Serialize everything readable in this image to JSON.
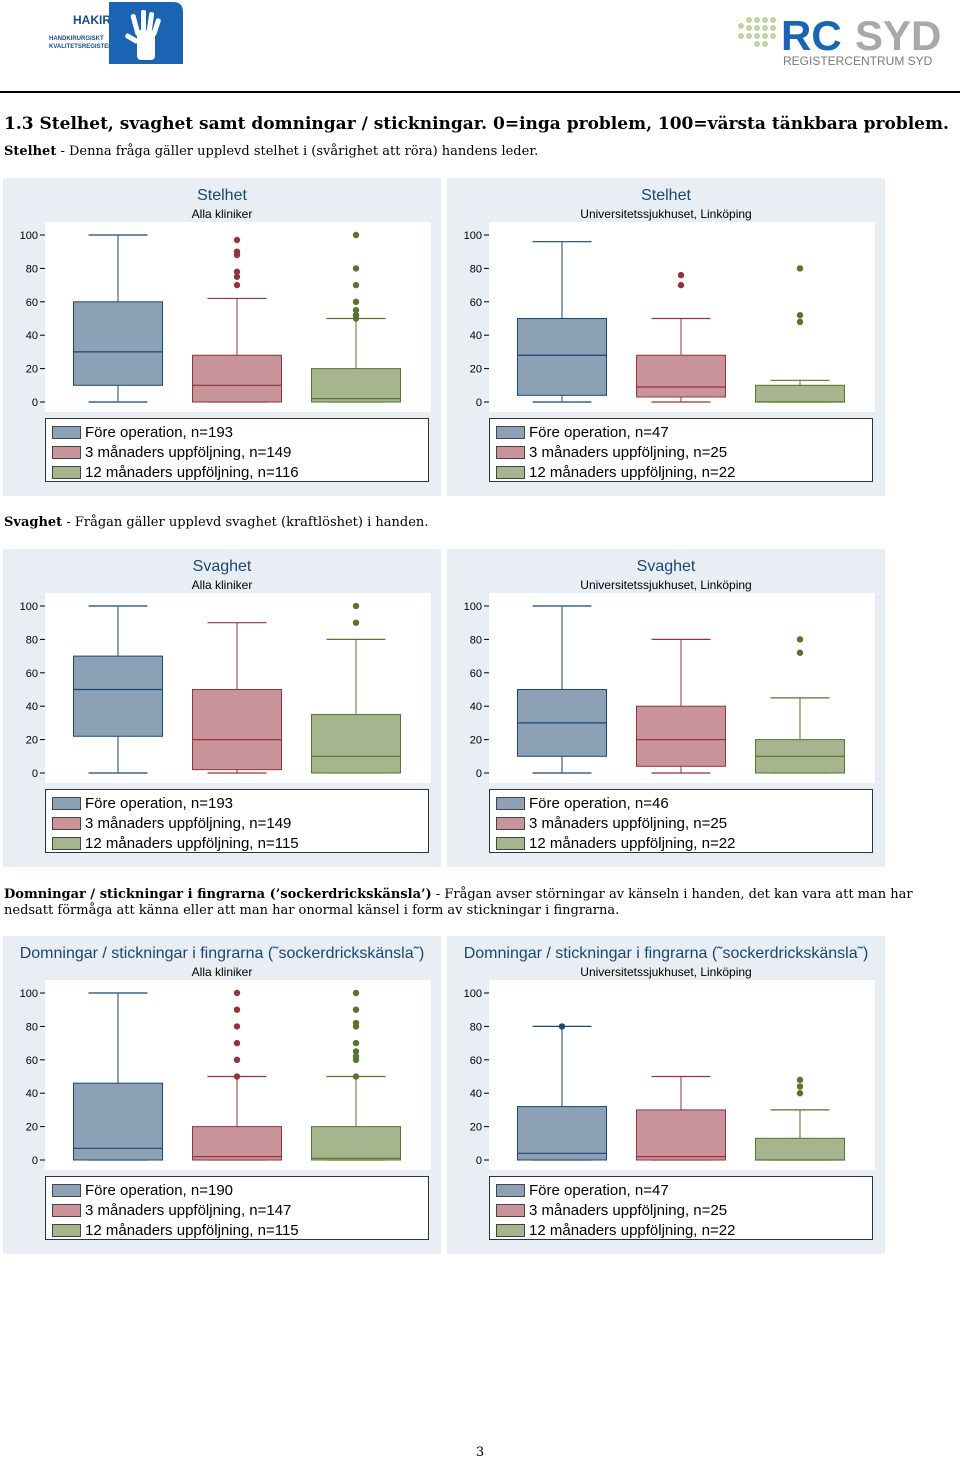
{
  "colors": {
    "pre": "#8ca1b6",
    "pre_line": "#1a476f",
    "m3": "#c9939a",
    "m3_line": "#90353b",
    "m12": "#a6b58e",
    "m12_line": "#55752f",
    "panel_bg": "#e8eef3"
  },
  "logos": {
    "hakir": {
      "word": "HAKIR",
      "line1": "HANDKIRURGISKT",
      "line2": "KVALITETSREGISTER"
    },
    "rcsyd": {
      "word_rc": "RC",
      "word_syd": "SYD",
      "sub": "REGISTERCENTRUM SYD"
    }
  },
  "section": {
    "title": "1.3   Stelhet, svaghet samt domningar / stickningar. 0=inga problem, 100=värsta tänkbara problem."
  },
  "descriptions": {
    "stelhet": {
      "bold": "Stelhet",
      "text": " - Denna fråga gäller upplevd stelhet i (svårighet att röra) handens leder."
    },
    "svaghet": {
      "bold": "Svaghet",
      "text": " - Frågan gäller upplevd svaghet (kraftlöshet) i handen."
    },
    "domningar": {
      "bold": "Domningar / stickningar i fingrarna (’sockerdrickskänsla’)",
      "text": " - Frågan avser störningar av känseln i handen, det kan vara att man har nedsatt förmåga att känna eller att man har onormal känsel i form av stickningar i fingrarna."
    }
  },
  "chart_data": [
    {
      "type": "box",
      "title": "Stelhet",
      "subtitle": "Alla kliniker",
      "ylim": [
        0,
        100
      ],
      "yticks": [
        "0",
        "20",
        "40",
        "60",
        "80",
        "100"
      ],
      "legend": [
        "Före operation, n=193",
        "3 månaders uppföljning, n=149",
        "12 månaders uppföljning, n=116"
      ],
      "boxes": [
        {
          "name": "Före operation",
          "whisker_low": 0,
          "q1": 10,
          "median": 30,
          "q3": 60,
          "whisker_high": 100,
          "outliers": []
        },
        {
          "name": "3 månaders uppföljning",
          "whisker_low": 0,
          "q1": 0,
          "median": 10,
          "q3": 28,
          "whisker_high": 62,
          "outliers": [
            70,
            75,
            78,
            88,
            90,
            97
          ]
        },
        {
          "name": "12 månaders uppföljning",
          "whisker_low": 0,
          "q1": 0,
          "median": 2,
          "q3": 20,
          "whisker_high": 50,
          "outliers": [
            50,
            52,
            55,
            60,
            70,
            80,
            100
          ]
        }
      ]
    },
    {
      "type": "box",
      "title": "Stelhet",
      "subtitle": "Universitetssjukhuset, Linköping",
      "ylim": [
        0,
        100
      ],
      "yticks": [
        "0",
        "20",
        "40",
        "60",
        "80",
        "100"
      ],
      "legend": [
        "Före operation, n=47",
        "3 månaders uppföljning, n=25",
        "12 månaders uppföljning, n=22"
      ],
      "boxes": [
        {
          "name": "Före operation",
          "whisker_low": 0,
          "q1": 4,
          "median": 28,
          "q3": 50,
          "whisker_high": 96,
          "outliers": []
        },
        {
          "name": "3 månaders uppföljning",
          "whisker_low": 0,
          "q1": 3,
          "median": 9,
          "q3": 28,
          "whisker_high": 50,
          "outliers": [
            70,
            76
          ]
        },
        {
          "name": "12 månaders uppföljning",
          "whisker_low": 0,
          "q1": 0,
          "median": 0,
          "q3": 10,
          "whisker_high": 13,
          "outliers": [
            48,
            52,
            80
          ]
        }
      ]
    },
    {
      "type": "box",
      "title": "Svaghet",
      "subtitle": "Alla kliniker",
      "ylim": [
        0,
        100
      ],
      "yticks": [
        "0",
        "20",
        "40",
        "60",
        "80",
        "100"
      ],
      "legend": [
        "Före operation, n=193",
        "3 månaders uppföljning, n=149",
        "12 månaders uppföljning, n=115"
      ],
      "boxes": [
        {
          "name": "Före operation",
          "whisker_low": 0,
          "q1": 22,
          "median": 50,
          "q3": 70,
          "whisker_high": 100,
          "outliers": []
        },
        {
          "name": "3 månaders uppföljning",
          "whisker_low": 0,
          "q1": 2,
          "median": 20,
          "q3": 50,
          "whisker_high": 90,
          "outliers": []
        },
        {
          "name": "12 månaders uppföljning",
          "whisker_low": 0,
          "q1": 0,
          "median": 10,
          "q3": 35,
          "whisker_high": 80,
          "outliers": [
            90,
            100
          ]
        }
      ]
    },
    {
      "type": "box",
      "title": "Svaghet",
      "subtitle": "Universitetssjukhuset, Linköping",
      "ylim": [
        0,
        100
      ],
      "yticks": [
        "0",
        "20",
        "40",
        "60",
        "80",
        "100"
      ],
      "legend": [
        "Före operation, n=46",
        "3 månaders uppföljning, n=25",
        "12 månaders uppföljning, n=22"
      ],
      "boxes": [
        {
          "name": "Före operation",
          "whisker_low": 0,
          "q1": 10,
          "median": 30,
          "q3": 50,
          "whisker_high": 100,
          "outliers": []
        },
        {
          "name": "3 månaders uppföljning",
          "whisker_low": 0,
          "q1": 4,
          "median": 20,
          "q3": 40,
          "whisker_high": 80,
          "outliers": []
        },
        {
          "name": "12 månaders uppföljning",
          "whisker_low": 0,
          "q1": 0,
          "median": 10,
          "q3": 20,
          "whisker_high": 45,
          "outliers": [
            72,
            80
          ]
        }
      ]
    },
    {
      "type": "box",
      "title": "Domningar / stickningar i fingrarna (˜sockerdrickskänsla˜)",
      "subtitle": "Alla kliniker",
      "ylim": [
        0,
        100
      ],
      "yticks": [
        "0",
        "20",
        "40",
        "60",
        "80",
        "100"
      ],
      "legend": [
        "Före operation, n=190",
        "3 månaders uppföljning, n=147",
        "12 månaders uppföljning, n=115"
      ],
      "boxes": [
        {
          "name": "Före operation",
          "whisker_low": 0,
          "q1": 0,
          "median": 7,
          "q3": 46,
          "whisker_high": 100,
          "outliers": []
        },
        {
          "name": "3 månaders uppföljning",
          "whisker_low": 0,
          "q1": 0,
          "median": 2,
          "q3": 20,
          "whisker_high": 50,
          "outliers": [
            50,
            60,
            70,
            80,
            90,
            100
          ]
        },
        {
          "name": "12 månaders uppföljning",
          "whisker_low": 0,
          "q1": 0,
          "median": 1,
          "q3": 20,
          "whisker_high": 50,
          "outliers": [
            50,
            60,
            62,
            65,
            70,
            80,
            82,
            90,
            100
          ]
        }
      ]
    },
    {
      "type": "box",
      "title": "Domningar / stickningar i fingrarna (˜sockerdrickskänsla˜)",
      "subtitle": "Universitetssjukhuset, Linköping",
      "ylim": [
        0,
        100
      ],
      "yticks": [
        "0",
        "20",
        "40",
        "60",
        "80",
        "100"
      ],
      "legend": [
        "Före operation, n=47",
        "3 månaders uppföljning, n=25",
        "12 månaders uppföljning, n=22"
      ],
      "boxes": [
        {
          "name": "Före operation",
          "whisker_low": 0,
          "q1": 0,
          "median": 4,
          "q3": 32,
          "whisker_high": 80,
          "outliers": [
            80
          ]
        },
        {
          "name": "3 månaders uppföljning",
          "whisker_low": 0,
          "q1": 0,
          "median": 2,
          "q3": 30,
          "whisker_high": 50,
          "outliers": []
        },
        {
          "name": "12 månaders uppföljning",
          "whisker_low": 0,
          "q1": 0,
          "median": 0,
          "q3": 13,
          "whisker_high": 30,
          "outliers": [
            40,
            44,
            48
          ]
        }
      ]
    }
  ],
  "page_number": "3"
}
